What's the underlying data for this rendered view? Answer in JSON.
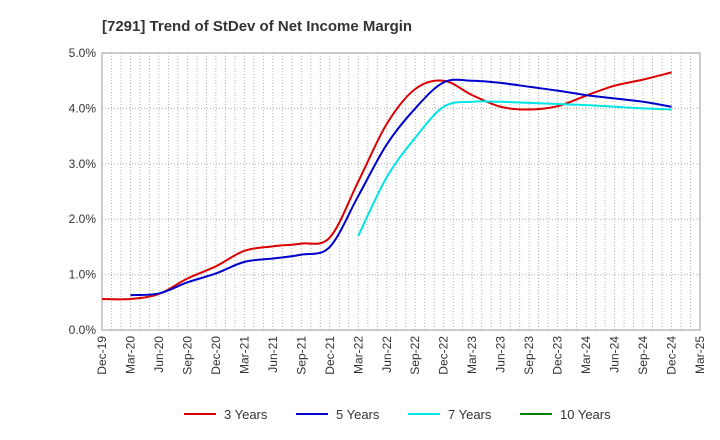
{
  "chart_data": {
    "type": "line",
    "title": "[7291]  Trend of StDev of Net Income Margin",
    "xlabel": "",
    "ylabel": "",
    "x": [
      "Dec-19",
      "Mar-20",
      "Jun-20",
      "Sep-20",
      "Dec-20",
      "Mar-21",
      "Jun-21",
      "Sep-21",
      "Dec-21",
      "Mar-22",
      "Jun-22",
      "Sep-22",
      "Dec-22",
      "Mar-23",
      "Jun-23",
      "Sep-23",
      "Dec-23",
      "Mar-24",
      "Jun-24",
      "Sep-24",
      "Dec-24",
      "Mar-25"
    ],
    "ylim": [
      0,
      5
    ],
    "yticks": [
      "0.0%",
      "1.0%",
      "2.0%",
      "3.0%",
      "4.0%",
      "5.0%"
    ],
    "grid": true,
    "legend_position": "bottom",
    "series": [
      {
        "name": "3 Years",
        "color": "#dd0000",
        "values": [
          0.56,
          0.56,
          0.65,
          0.93,
          1.15,
          1.43,
          1.51,
          1.56,
          1.67,
          2.68,
          3.72,
          4.35,
          4.5,
          4.24,
          4.03,
          3.98,
          4.04,
          4.23,
          4.41,
          4.52,
          4.65,
          null
        ]
      },
      {
        "name": "5 Years",
        "color": "#0000cc",
        "values": [
          null,
          0.63,
          0.66,
          0.86,
          1.02,
          1.23,
          1.29,
          1.36,
          1.5,
          2.42,
          3.35,
          4.0,
          4.47,
          4.5,
          4.46,
          4.39,
          4.32,
          4.24,
          4.18,
          4.12,
          4.03,
          null
        ]
      },
      {
        "name": "7 Years",
        "color": "#00e5e5",
        "values": [
          null,
          null,
          null,
          null,
          null,
          null,
          null,
          null,
          null,
          1.7,
          2.76,
          3.47,
          4.03,
          4.12,
          4.12,
          4.1,
          4.08,
          4.06,
          4.03,
          4.0,
          3.98,
          null
        ]
      },
      {
        "name": "10 Years",
        "color": "#008000",
        "values": [
          null,
          null,
          null,
          null,
          null,
          null,
          null,
          null,
          null,
          null,
          null,
          null,
          null,
          null,
          null,
          null,
          null,
          null,
          null,
          null,
          null,
          null
        ]
      }
    ]
  }
}
